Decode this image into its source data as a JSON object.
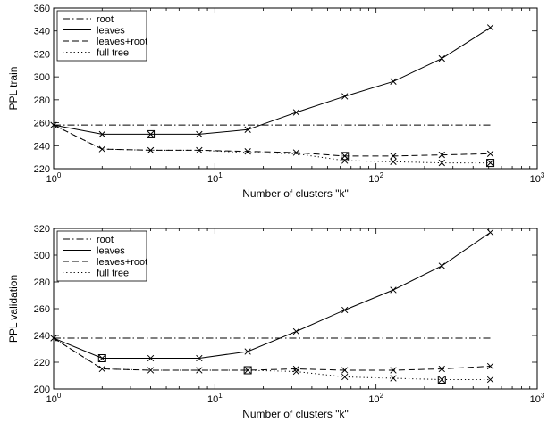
{
  "chart_data": [
    {
      "type": "line",
      "xscale": "log",
      "x": [
        1,
        2,
        4,
        8,
        16,
        32,
        64,
        128,
        256,
        512
      ],
      "xlim": [
        1,
        1000
      ],
      "ylim": [
        220,
        360
      ],
      "yticks": [
        220,
        240,
        260,
        280,
        300,
        320,
        340,
        360
      ],
      "xtick_labels": [
        {
          "base": "10",
          "exp": "0"
        },
        {
          "base": "10",
          "exp": "1"
        },
        {
          "base": "10",
          "exp": "2"
        },
        {
          "base": "10",
          "exp": "3"
        }
      ],
      "xlabel": "Number of clusters \"k\"",
      "ylabel": "PPL train",
      "legend_position": "top-left",
      "series": [
        {
          "name": "root",
          "style": "dashdot",
          "values": [
            258,
            258,
            258,
            258,
            258,
            258,
            258,
            258,
            258,
            258
          ],
          "marked": [],
          "boxed": []
        },
        {
          "name": "leaves",
          "style": "solid",
          "values": [
            258,
            250,
            250,
            250,
            254,
            269,
            283,
            296,
            316,
            343
          ],
          "marked": [
            0,
            1,
            2,
            3,
            4,
            5,
            6,
            7,
            8,
            9
          ],
          "boxed": [
            2
          ]
        },
        {
          "name": "leaves+root",
          "style": "dashed",
          "values": [
            258,
            237,
            236,
            236,
            235,
            234,
            231,
            231,
            232,
            233
          ],
          "marked": [
            1,
            2,
            3,
            4,
            5,
            6,
            7,
            8,
            9
          ],
          "boxed": [
            6
          ]
        },
        {
          "name": "full tree",
          "style": "dotted",
          "values": [
            258,
            237,
            236,
            236,
            234,
            233,
            227,
            226,
            225,
            225
          ],
          "marked": [
            6,
            7,
            8,
            9
          ],
          "boxed": [
            9
          ]
        }
      ]
    },
    {
      "type": "line",
      "xscale": "log",
      "x": [
        1,
        2,
        4,
        8,
        16,
        32,
        64,
        128,
        256,
        512
      ],
      "xlim": [
        1,
        1000
      ],
      "ylim": [
        200,
        320
      ],
      "yticks": [
        200,
        220,
        240,
        260,
        280,
        300,
        320
      ],
      "xtick_labels": [
        {
          "base": "10",
          "exp": "0"
        },
        {
          "base": "10",
          "exp": "1"
        },
        {
          "base": "10",
          "exp": "2"
        },
        {
          "base": "10",
          "exp": "3"
        }
      ],
      "xlabel": "Number of clusters \"k\"",
      "ylabel": "PPL validation",
      "legend_position": "top-left",
      "series": [
        {
          "name": "root",
          "style": "dashdot",
          "values": [
            238,
            238,
            238,
            238,
            238,
            238,
            238,
            238,
            238,
            238
          ],
          "marked": [],
          "boxed": []
        },
        {
          "name": "leaves",
          "style": "solid",
          "values": [
            238,
            223,
            223,
            223,
            228,
            243,
            259,
            274,
            292,
            317
          ],
          "marked": [
            0,
            1,
            2,
            3,
            4,
            5,
            6,
            7,
            8,
            9
          ],
          "boxed": [
            1
          ]
        },
        {
          "name": "leaves+root",
          "style": "dashed",
          "values": [
            238,
            215,
            214,
            214,
            214,
            215,
            214,
            214,
            215,
            217
          ],
          "marked": [
            1,
            2,
            3,
            4,
            5,
            6,
            7,
            8,
            9
          ],
          "boxed": [
            4
          ]
        },
        {
          "name": "full tree",
          "style": "dotted",
          "values": [
            238,
            215,
            214,
            214,
            214,
            213,
            209,
            208,
            207,
            207
          ],
          "marked": [
            5,
            6,
            7,
            8,
            9
          ],
          "boxed": [
            8
          ]
        }
      ]
    }
  ]
}
